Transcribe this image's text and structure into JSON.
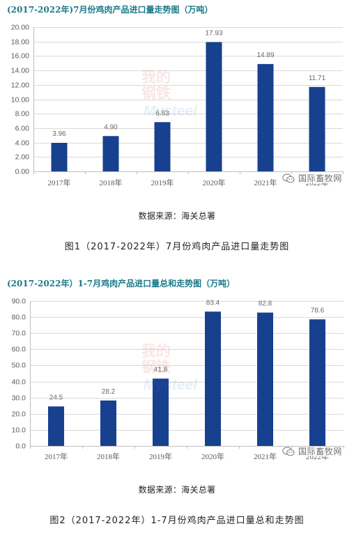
{
  "chart_data": [
    {
      "type": "bar",
      "title": "(2017-2022年)7月份鸡肉产品进口量走势图（万吨）",
      "categories": [
        "2017年",
        "2018年",
        "2019年",
        "2020年",
        "2021年",
        "2022年"
      ],
      "values": [
        3.96,
        4.9,
        6.83,
        17.93,
        14.89,
        11.71
      ],
      "value_labels": [
        "3.96",
        "4.90",
        "6.83",
        "17.93",
        "14.89",
        "11.71"
      ],
      "yticks": [
        "0.00",
        "2.00",
        "4.00",
        "6.00",
        "8.00",
        "10.00",
        "12.00",
        "14.00",
        "16.00",
        "18.00",
        "20.00"
      ],
      "ylim": [
        0,
        20
      ],
      "grid": true,
      "bar_color": "#17408f"
    },
    {
      "type": "bar",
      "title": "(2017-2022年）1-7月鸡肉产品进口量总和走势图（万吨）",
      "categories": [
        "2017年",
        "2018年",
        "2019年",
        "2020年",
        "2021年",
        "2022年"
      ],
      "values": [
        24.5,
        28.2,
        41.8,
        83.4,
        82.8,
        78.6
      ],
      "value_labels": [
        "24.5",
        "28.2",
        "41.8",
        "83.4",
        "82.8",
        "78.6"
      ],
      "yticks": [
        "0.0",
        "10.0",
        "20.0",
        "30.0",
        "40.0",
        "50.0",
        "60.0",
        "70.0",
        "80.0",
        "90.0"
      ],
      "ylim": [
        0,
        90
      ],
      "grid": true,
      "bar_color": "#17408f"
    }
  ],
  "captions": [
    {
      "source": "数据来源：海关总署",
      "figure": "图1（2017-2022年）7月份鸡肉产品进口量走势图"
    },
    {
      "source": "数据来源：海关总署",
      "figure": "图2（2017-2022年）1-7月份鸡肉产品进口量总和走势图"
    }
  ],
  "watermark": {
    "text": "国际畜牧网",
    "icon": "wechat-icon"
  },
  "logo_watermark": {
    "cn_top": "我的",
    "cn_bottom": "钢铁",
    "latin": "Mysteel"
  },
  "colors": {
    "title": "#1b7a8a",
    "grid": "#d9d9d9",
    "axis": "#bfbfbf",
    "watermark_icon": "#7a7a7a"
  }
}
